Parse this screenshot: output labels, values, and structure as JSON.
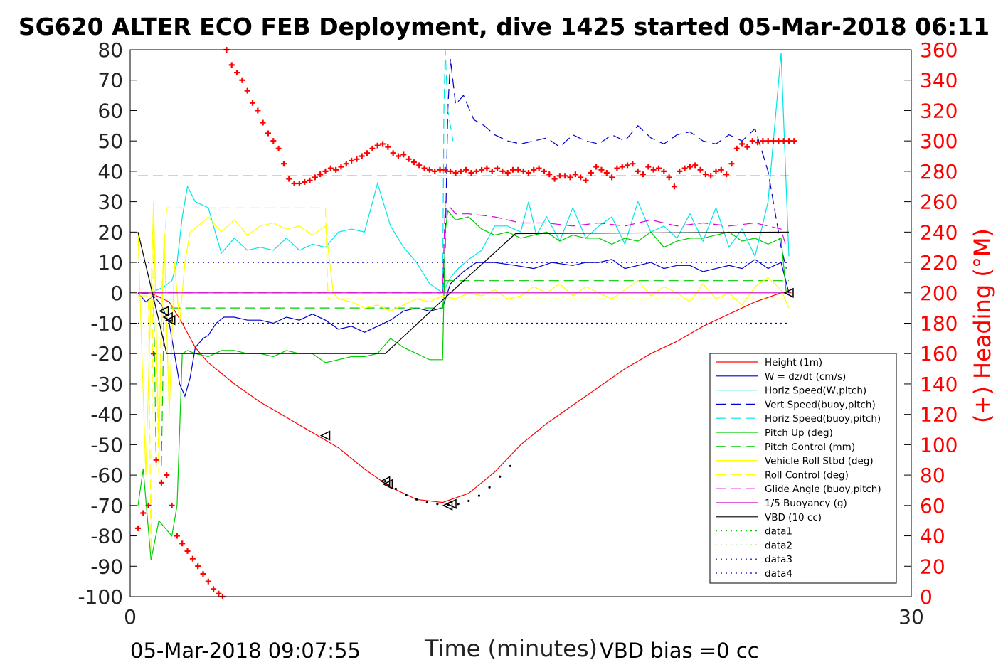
{
  "title": "SG620 ALTER ECO FEB Deployment, dive 1425 started 05-Mar-2018 06:11",
  "footer": {
    "date": "05-Mar-2018 09:07:55",
    "vbd_bias": "VBD bias =0 cc"
  },
  "chart_data": {
    "type": "line",
    "xlabel": "Time (minutes)",
    "ylabel": "",
    "y2label": "(+) Heading (°M)",
    "xlim": [
      0,
      30
    ],
    "ylim": [
      -100,
      80
    ],
    "y2lim": [
      0,
      360
    ],
    "xticks": [
      0,
      30
    ],
    "yticks": [
      80,
      70,
      60,
      50,
      40,
      30,
      20,
      10,
      0,
      -10,
      -20,
      -30,
      -40,
      -50,
      -60,
      -70,
      -80,
      -90,
      -100
    ],
    "y2ticks": [
      360,
      340,
      320,
      300,
      280,
      260,
      240,
      220,
      200,
      180,
      160,
      140,
      120,
      100,
      80,
      60,
      40,
      20,
      0
    ],
    "legend_location": "lower-right",
    "colors": {
      "height": "#ff0000",
      "w": "#0000cc",
      "horiz": "#00e5e5",
      "vert_buoy": "#0000cc",
      "horiz_buoy": "#00e5e5",
      "pitch": "#00cc00",
      "pitch_ctrl": "#00cc00",
      "roll": "#ffff00",
      "roll_ctrl": "#ffff00",
      "glide": "#e000e0",
      "buoy": "#cc00cc",
      "vbd": "#000000",
      "heading": "#ff0000",
      "data1": "#00cc00",
      "data2": "#00cc00",
      "data3": "#0000cc",
      "data4": "#0000cc"
    },
    "series": [
      {
        "key": "height",
        "name": "Height (1m)",
        "style": "solid",
        "x": [
          0.3,
          0.9,
          1.5,
          2.0,
          2.5,
          3.0,
          4.0,
          5.0,
          6.0,
          7.0,
          8.0,
          9.0,
          10.0,
          11.0,
          12.0,
          13.0,
          14.0,
          15.0,
          16.0,
          17.0,
          18.0,
          19.0,
          20.0,
          21.0,
          22.0,
          23.0,
          24.0,
          25.0,
          25.4
        ],
        "y": [
          0,
          -0.5,
          -3,
          -10,
          -18,
          -23,
          -30,
          -36,
          -41,
          -46,
          -51,
          -58,
          -64,
          -68,
          -69,
          -66,
          -59,
          -50,
          -43,
          -37,
          -31,
          -25,
          -20,
          -16,
          -11,
          -7,
          -3,
          0,
          0
        ]
      },
      {
        "key": "w",
        "name": "W = dz/dt (cm/s)",
        "style": "solid",
        "x": [
          0.3,
          0.6,
          0.9,
          1.2,
          1.5,
          1.7,
          1.9,
          2.1,
          2.3,
          2.5,
          2.8,
          3.0,
          3.3,
          3.6,
          4.0,
          4.5,
          5.0,
          5.5,
          6.0,
          6.5,
          7.0,
          7.5,
          8.0,
          8.5,
          9.0,
          9.5,
          10.0,
          10.5,
          11.0,
          11.5,
          12.0,
          12.3,
          12.8,
          13.3,
          14.0,
          14.8,
          15.5,
          16.2,
          17.0,
          17.5,
          18.0,
          18.5,
          19.0,
          19.5,
          20.0,
          20.5,
          21.0,
          21.5,
          22.0,
          22.5,
          23.0,
          23.5,
          24.0,
          24.5,
          25.0,
          25.3
        ],
        "y": [
          0,
          -3,
          -1,
          -4,
          -10,
          -20,
          -30,
          -34,
          -28,
          -18,
          -15,
          -14,
          -10,
          -8,
          -8,
          -9,
          -9,
          -10,
          -8,
          -9,
          -7,
          -9,
          -12,
          -11,
          -13,
          -11,
          -9,
          -6,
          -5,
          -6,
          -5,
          3,
          7,
          10,
          10,
          9,
          8,
          10,
          9,
          10,
          10,
          11,
          8,
          9,
          10,
          8,
          9,
          9,
          7,
          8,
          9,
          8,
          11,
          8,
          10,
          0
        ]
      },
      {
        "key": "horiz",
        "name": "Horiz Speed(W,pitch)",
        "style": "solid",
        "x": [
          0.3,
          0.8,
          1.3,
          1.6,
          1.8,
          2.0,
          2.2,
          2.5,
          3.0,
          3.5,
          4.0,
          4.5,
          5.0,
          5.5,
          6.0,
          6.5,
          7.0,
          7.5,
          8.0,
          8.5,
          9.0,
          9.5,
          10.0,
          10.5,
          11.0,
          11.5,
          12.0,
          12.3,
          12.6,
          13.0,
          13.5,
          14.0,
          14.5,
          15.0,
          15.3,
          15.6,
          16.0,
          16.5,
          17.0,
          17.5,
          18.0,
          18.5,
          19.0,
          19.5,
          20.0,
          20.5,
          21.0,
          21.5,
          22.0,
          22.5,
          23.0,
          23.5,
          24.0,
          24.5,
          25.0,
          25.3
        ],
        "y": [
          0,
          0,
          2,
          4,
          10,
          25,
          35,
          30,
          28,
          13,
          18,
          14,
          15,
          14,
          18,
          14,
          16,
          15,
          20,
          21,
          20,
          36,
          22,
          15,
          10,
          3,
          0,
          5,
          8,
          11,
          14,
          22,
          22,
          20,
          30,
          19,
          25,
          17,
          28,
          18,
          22,
          25,
          16,
          30,
          20,
          22,
          18,
          26,
          17,
          28,
          15,
          21,
          12,
          30,
          79,
          12
        ]
      },
      {
        "key": "vert_buoy",
        "name": "Vert Speed(buoy,pitch)",
        "style": "dash",
        "x": [
          12.0,
          12.1,
          12.2,
          12.3,
          12.5,
          12.8,
          13.2,
          13.6,
          14.0,
          14.5,
          15.0,
          15.5,
          16.0,
          16.5,
          17.0,
          17.5,
          18.0,
          18.5,
          19.0,
          19.5,
          20.0,
          20.5,
          21.0,
          21.5,
          22.0,
          22.5,
          23.0,
          23.5,
          24.0,
          24.5,
          25.0,
          25.2
        ],
        "y": [
          0,
          15,
          60,
          77,
          62,
          65,
          57,
          55,
          52,
          50,
          49,
          50,
          51,
          48,
          52,
          50,
          49,
          52,
          50,
          55,
          51,
          49,
          52,
          53,
          50,
          49,
          52,
          50,
          54,
          40,
          15,
          8
        ]
      },
      {
        "key": "horiz_buoy",
        "name": "Horiz Speed(buoy,pitch)",
        "style": "dash",
        "x": [
          12.0,
          12.05,
          12.1,
          12.2,
          12.4
        ],
        "y": [
          0,
          60,
          80,
          60,
          50
        ]
      },
      {
        "key": "pitch",
        "name": "Pitch Up (deg)",
        "style": "solid",
        "x": [
          0.3,
          0.5,
          0.8,
          1.1,
          1.4,
          1.6,
          1.8,
          2.0,
          2.2,
          2.5,
          3.0,
          3.5,
          4.0,
          4.5,
          5.0,
          5.5,
          6.0,
          6.5,
          7.0,
          7.5,
          8.0,
          8.5,
          9.0,
          9.5,
          10.0,
          10.5,
          11.0,
          11.5,
          12.0,
          12.1,
          12.2,
          12.5,
          13.0,
          13.5,
          14.0,
          14.5,
          15.0,
          15.5,
          16.0,
          16.5,
          17.0,
          17.5,
          18.0,
          18.5,
          19.0,
          19.5,
          20.0,
          20.5,
          21.0,
          21.5,
          22.0,
          22.5,
          23.0,
          23.5,
          24.0,
          24.5,
          25.0,
          25.2
        ],
        "y": [
          -70,
          -58,
          -88,
          -75,
          -78,
          -80,
          -70,
          -20,
          -19,
          -20,
          -21,
          -19,
          -19,
          -20,
          -20,
          -21,
          -19,
          -20,
          -20,
          -23,
          -22,
          -21,
          -21,
          -20,
          -15,
          -18,
          -20,
          -22,
          -22,
          20,
          27,
          24,
          25,
          21,
          19,
          20,
          18,
          19,
          20,
          17,
          19,
          18,
          18,
          16,
          18,
          17,
          20,
          15,
          17,
          18,
          18,
          19,
          20,
          17,
          18,
          16,
          18,
          0
        ]
      },
      {
        "key": "pitch_ctrl",
        "name": "Pitch Control (mm)",
        "style": "dash",
        "x": [
          0.3,
          0.9,
          1.0,
          1.2,
          1.3,
          1.5,
          12.0,
          12.1,
          25.3
        ],
        "y": [
          0,
          0,
          -57,
          -57,
          -5,
          -5,
          -5,
          4,
          4
        ]
      },
      {
        "key": "roll",
        "name": "Vehicle Roll Stbd (deg)",
        "style": "solid",
        "x": [
          0.3,
          0.6,
          0.9,
          1.1,
          1.3,
          1.5,
          1.7,
          1.9,
          2.1,
          2.3,
          2.6,
          3.0,
          3.5,
          4.0,
          4.5,
          5.0,
          5.5,
          6.0,
          6.5,
          7.0,
          7.5,
          7.8,
          8.0,
          8.5,
          9.0,
          9.5,
          10.0,
          10.5,
          11.0,
          11.5,
          12.0,
          12.5,
          13.0,
          13.5,
          14.0,
          14.5,
          15.0,
          15.5,
          16.0,
          16.5,
          17.0,
          17.5,
          18.0,
          18.5,
          19.0,
          19.5,
          20.0,
          20.5,
          21.0,
          21.5,
          22.0,
          22.5,
          23.0,
          23.5,
          24.0,
          24.5,
          25.0,
          25.3
        ],
        "y": [
          20,
          -60,
          30,
          -50,
          20,
          -40,
          10,
          -10,
          10,
          20,
          22,
          25,
          20,
          24,
          19,
          22,
          23,
          21,
          22,
          19,
          22,
          0,
          -2,
          -3,
          -5,
          -4,
          -6,
          -4,
          -2,
          -3,
          -1,
          -2,
          0,
          -1,
          1,
          -2,
          -1,
          2,
          0,
          3,
          -1,
          2,
          0,
          -2,
          1,
          4,
          -1,
          2,
          0,
          -3,
          3,
          -2,
          0,
          -4,
          2,
          5,
          1,
          -5
        ]
      },
      {
        "key": "roll_ctrl",
        "name": "Roll Control (deg)",
        "style": "dash",
        "x": [
          0.3,
          0.7,
          0.8,
          0.9,
          1.1,
          1.2,
          1.4,
          7.5,
          7.6,
          25.3
        ],
        "y": [
          -1,
          -1,
          -85,
          30,
          -60,
          -1,
          28,
          28,
          -2,
          -2
        ]
      },
      {
        "key": "glide",
        "name": "Glide Angle (buoy,pitch)",
        "style": "dash",
        "x": [
          0.3,
          12.0,
          12.1,
          12.5,
          13.0,
          14.0,
          15.0,
          16.0,
          17.0,
          18.0,
          19.0,
          20.0,
          21.0,
          22.0,
          23.0,
          24.0,
          25.0,
          25.2
        ],
        "y": [
          0,
          0,
          30,
          26,
          26,
          25,
          23,
          23,
          22,
          23,
          22,
          24,
          22,
          23,
          22,
          23,
          21,
          15
        ]
      },
      {
        "key": "buoy",
        "name": "1/5 Buoyancy (g)",
        "style": "solid",
        "x": [
          0.3,
          25.2
        ],
        "y": [
          0,
          0
        ]
      },
      {
        "key": "vbd",
        "name": "VBD (10 cc)",
        "style": "solid",
        "x": [
          0.3,
          1.4,
          9.8,
          12.3,
          14.8,
          25.3
        ],
        "y": [
          20,
          -20,
          -20,
          0,
          19.5,
          20
        ]
      },
      {
        "key": "data1",
        "name": "data1",
        "style": "dot",
        "x": [],
        "y": []
      },
      {
        "key": "data2",
        "name": "data2",
        "style": "dot",
        "x": [],
        "y": []
      },
      {
        "key": "data3",
        "name": "data3",
        "style": "dot",
        "x": [
          0.3,
          25.3
        ],
        "y": [
          10,
          10
        ]
      },
      {
        "key": "data4",
        "name": "data4",
        "style": "dot",
        "x": [
          0.3,
          25.3
        ],
        "y": [
          -10,
          -10
        ]
      }
    ],
    "reference_lines": [
      {
        "key": "heading-ref",
        "axis": "y2",
        "value": 277,
        "x": [
          0.3,
          25.3
        ],
        "style": "dash",
        "color": "#ff0000"
      }
    ],
    "heading": {
      "axis": "y2",
      "x": [
        0.3,
        0.5,
        0.7,
        0.9,
        1.0,
        1.2,
        1.4,
        1.6,
        1.8,
        2.0,
        2.2,
        2.4,
        2.6,
        2.8,
        3.0,
        3.2,
        3.4,
        3.55,
        3.7,
        3.9,
        4.1,
        4.3,
        4.5,
        4.7,
        4.9,
        5.1,
        5.3,
        5.5,
        5.7,
        5.9,
        6.1,
        6.3,
        6.5,
        6.7,
        6.9,
        7.1,
        7.3,
        7.5,
        7.7,
        7.9,
        8.1,
        8.3,
        8.5,
        8.7,
        8.9,
        9.1,
        9.3,
        9.5,
        9.7,
        9.9,
        10.1,
        10.3,
        10.5,
        10.7,
        10.9,
        11.1,
        11.3,
        11.5,
        11.7,
        11.9,
        12.1,
        12.3,
        12.5,
        12.7,
        12.9,
        13.1,
        13.3,
        13.5,
        13.7,
        13.9,
        14.1,
        14.3,
        14.5,
        14.7,
        14.9,
        15.1,
        15.3,
        15.5,
        15.7,
        15.9,
        16.1,
        16.3,
        16.5,
        16.7,
        16.9,
        17.1,
        17.3,
        17.5,
        17.7,
        17.9,
        18.1,
        18.3,
        18.5,
        18.7,
        18.9,
        19.1,
        19.3,
        19.5,
        19.7,
        19.9,
        20.1,
        20.3,
        20.5,
        20.7,
        20.9,
        21.1,
        21.3,
        21.5,
        21.7,
        21.9,
        22.1,
        22.3,
        22.5,
        22.7,
        22.9,
        23.1,
        23.3,
        23.5,
        23.7,
        23.9,
        24.1,
        24.3,
        24.5,
        24.7,
        24.9,
        25.1,
        25.3,
        25.5
      ],
      "y": [
        45,
        55,
        60,
        160,
        90,
        75,
        80,
        60,
        40,
        35,
        30,
        25,
        20,
        15,
        10,
        5,
        2,
        0,
        360,
        350,
        345,
        340,
        333,
        325,
        320,
        312,
        305,
        300,
        295,
        285,
        275,
        272,
        272,
        273,
        274,
        276,
        278,
        280,
        282,
        281,
        283,
        285,
        287,
        288,
        290,
        292,
        295,
        297,
        298,
        296,
        292,
        290,
        291,
        288,
        286,
        284,
        282,
        281,
        280,
        281,
        281,
        280,
        279,
        280,
        281,
        279,
        280,
        281,
        282,
        280,
        282,
        280,
        279,
        281,
        281,
        280,
        279,
        281,
        282,
        280,
        278,
        275,
        277,
        277,
        276,
        278,
        276,
        274,
        279,
        283,
        281,
        279,
        276,
        282,
        283,
        284,
        285,
        280,
        278,
        283,
        281,
        282,
        280,
        276,
        270,
        280,
        282,
        283,
        284,
        281,
        278,
        277,
        280,
        281,
        278,
        285,
        295,
        298,
        296,
        300,
        299,
        300,
        300,
        300,
        300,
        300,
        300,
        300
      ]
    },
    "markers": {
      "x": [
        1.3,
        1.45,
        1.55,
        7.5,
        9.8,
        9.9,
        12.2,
        12.35,
        25.3
      ],
      "y": [
        -6,
        -8,
        -9,
        -47,
        -62,
        -63,
        -70,
        -69.5,
        0
      ]
    },
    "dotted_path": {
      "x": [
        9.8,
        10.2,
        10.6,
        11.0,
        11.4,
        11.8,
        12.2,
        12.6,
        13.0,
        13.4,
        13.8,
        14.2,
        14.6
      ],
      "y": [
        -62,
        -64.5,
        -66.5,
        -68,
        -69,
        -69.5,
        -69.8,
        -69.5,
        -68.5,
        -66.8,
        -64,
        -60.5,
        -57
      ]
    }
  }
}
